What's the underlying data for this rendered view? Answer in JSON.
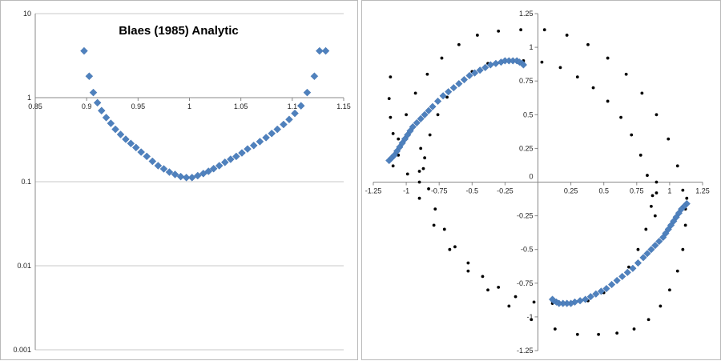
{
  "chart_data": [
    {
      "type": "scatter",
      "title": "Blaes (1985) Analytic",
      "xlabel": "",
      "ylabel": "",
      "yscale": "log",
      "xlim": [
        0.85,
        1.15
      ],
      "ylim": [
        0.001,
        10
      ],
      "grid": "horizontal gridlines at decades",
      "marker": "diamond",
      "marker_color": "#4f81bd",
      "x_ticks": [
        "0.85",
        "0.9",
        "0.95",
        "1",
        "1.05",
        "1.1",
        "1.15"
      ],
      "y_ticks": [
        "10",
        "1",
        "0.1",
        "0.01",
        "0.001"
      ],
      "series": [
        {
          "x": [
            0.8975,
            0.9025,
            0.9065,
            0.9105,
            0.9145,
            0.919,
            0.9235,
            0.928,
            0.933,
            0.938,
            0.943,
            0.948,
            0.953,
            0.9585,
            0.964,
            0.9695,
            0.975,
            0.9805,
            0.986,
            0.9915,
            0.997,
            1.0025,
            1.008,
            1.0135,
            1.0185,
            1.0235,
            1.029,
            1.0345,
            1.04,
            1.0455,
            1.051,
            1.0565,
            1.0625,
            1.0685,
            1.0745,
            1.08,
            1.0855,
            1.0915,
            1.097,
            1.1025,
            1.1085,
            1.1145,
            1.1215,
            1.1265,
            1.1325
          ],
          "y": [
            3.6,
            1.8,
            1.15,
            0.87,
            0.7,
            0.58,
            0.495,
            0.42,
            0.365,
            0.32,
            0.285,
            0.255,
            0.225,
            0.2,
            0.175,
            0.155,
            0.142,
            0.13,
            0.122,
            0.115,
            0.112,
            0.112,
            0.118,
            0.125,
            0.133,
            0.143,
            0.155,
            0.17,
            0.185,
            0.2,
            0.22,
            0.245,
            0.27,
            0.3,
            0.335,
            0.375,
            0.42,
            0.48,
            0.55,
            0.65,
            0.8,
            1.15,
            1.8,
            3.6,
            3.6
          ]
        }
      ]
    },
    {
      "type": "scatter",
      "title": "",
      "xlabel": "",
      "ylabel": "",
      "xlim": [
        -1.25,
        1.25
      ],
      "ylim": [
        -1.25,
        1.25
      ],
      "grid": "off",
      "x_ticks": [
        "-1.25",
        "-1",
        "-0.75",
        "-0.5",
        "-0.25",
        "0",
        "0.25",
        "0.5",
        "0.75",
        "1",
        "1.25"
      ],
      "y_ticks": [
        "1.25",
        "1",
        "0.75",
        "0.5",
        "0.25",
        "0",
        "-0.25",
        "-0.5",
        "-0.75",
        "-1",
        "-1.25"
      ],
      "series": [
        {
          "marker": "dot",
          "color": "#000000",
          "x": [
            -1.1,
            -1.06,
            -1.0,
            -0.93,
            -0.84,
            -0.73,
            -0.6,
            -0.46,
            -0.3,
            -0.13,
            0.05,
            0.22,
            0.38,
            0.53,
            0.67,
            0.79,
            0.9,
            0.99,
            1.06,
            1.1,
            1.12,
            1.13,
            1.12,
            1.1,
            1.06,
            1.0,
            0.93,
            0.84,
            0.73,
            0.6,
            0.46,
            0.3,
            0.13,
            -0.05,
            -0.22,
            -0.38,
            -0.53,
            -0.67,
            -0.79,
            -0.9,
            -0.99,
            -1.06,
            -1.1,
            -1.12,
            -1.13,
            -1.12,
            -0.9,
            -0.86,
            -0.82,
            -0.76,
            -0.69,
            -0.6,
            -0.5,
            -0.38,
            -0.25,
            -0.11,
            0.03,
            0.17,
            0.3,
            0.42,
            0.53,
            0.63,
            0.71,
            0.78,
            0.83,
            0.87,
            0.89,
            0.9,
            0.9,
            0.86,
            0.82,
            0.76,
            0.69,
            0.6,
            0.5,
            0.38,
            0.25,
            0.11,
            -0.03,
            -0.17,
            -0.3,
            -0.42,
            -0.53,
            -0.63,
            -0.71,
            -0.78,
            -0.83,
            -0.87,
            -0.89,
            -0.9
          ],
          "y": [
            0.12,
            0.32,
            0.5,
            0.66,
            0.8,
            0.92,
            1.02,
            1.09,
            1.12,
            1.13,
            1.13,
            1.09,
            1.02,
            0.92,
            0.8,
            0.66,
            0.5,
            0.32,
            0.12,
            -0.06,
            -0.2,
            -0.12,
            -0.32,
            -0.5,
            -0.66,
            -0.8,
            -0.92,
            -1.02,
            -1.09,
            -1.12,
            -1.13,
            -1.13,
            -1.09,
            -1.02,
            -0.92,
            -0.8,
            -0.66,
            -0.5,
            -0.32,
            -0.12,
            0.06,
            0.2,
            0.36,
            0.48,
            0.62,
            0.78,
            0.0,
            0.18,
            0.35,
            0.5,
            0.63,
            0.74,
            0.82,
            0.88,
            0.9,
            0.9,
            0.89,
            0.85,
            0.78,
            0.7,
            0.6,
            0.48,
            0.35,
            0.2,
            0.05,
            -0.1,
            -0.25,
            -0.08,
            0.0,
            -0.18,
            -0.35,
            -0.5,
            -0.63,
            -0.74,
            -0.82,
            -0.88,
            -0.9,
            -0.9,
            -0.89,
            -0.85,
            -0.78,
            -0.7,
            -0.6,
            -0.48,
            -0.35,
            -0.2,
            -0.05,
            0.1,
            0.25,
            0.08
          ]
        },
        {
          "marker": "diamond",
          "color": "#4f81bd",
          "x": [
            -1.13,
            -1.11,
            -1.09,
            -1.07,
            -1.05,
            -1.03,
            -1.01,
            -0.99,
            -0.97,
            -0.95,
            -0.92,
            -0.89,
            -0.86,
            -0.83,
            -0.8,
            -0.76,
            -0.72,
            -0.68,
            -0.64,
            -0.6,
            -0.56,
            -0.52,
            -0.48,
            -0.44,
            -0.4,
            -0.36,
            -0.32,
            -0.28,
            -0.25,
            -0.22,
            -0.19,
            -0.16,
            -0.14,
            -0.12,
            -0.11,
            1.13,
            1.11,
            1.09,
            1.07,
            1.05,
            1.03,
            1.01,
            0.99,
            0.97,
            0.95,
            0.92,
            0.89,
            0.86,
            0.83,
            0.8,
            0.76,
            0.72,
            0.68,
            0.64,
            0.6,
            0.56,
            0.52,
            0.48,
            0.44,
            0.4,
            0.36,
            0.32,
            0.28,
            0.25,
            0.22,
            0.19,
            0.16,
            0.14,
            0.12,
            0.11
          ],
          "y": [
            0.16,
            0.18,
            0.2,
            0.23,
            0.26,
            0.29,
            0.32,
            0.35,
            0.38,
            0.41,
            0.44,
            0.47,
            0.5,
            0.53,
            0.56,
            0.6,
            0.64,
            0.67,
            0.7,
            0.73,
            0.76,
            0.79,
            0.81,
            0.83,
            0.85,
            0.87,
            0.88,
            0.89,
            0.9,
            0.9,
            0.9,
            0.9,
            0.89,
            0.88,
            0.87,
            -0.16,
            -0.18,
            -0.2,
            -0.23,
            -0.26,
            -0.29,
            -0.32,
            -0.35,
            -0.38,
            -0.41,
            -0.44,
            -0.47,
            -0.5,
            -0.53,
            -0.56,
            -0.6,
            -0.64,
            -0.67,
            -0.7,
            -0.73,
            -0.76,
            -0.79,
            -0.81,
            -0.83,
            -0.85,
            -0.87,
            -0.88,
            -0.89,
            -0.9,
            -0.9,
            -0.9,
            -0.9,
            -0.89,
            -0.88,
            -0.87
          ]
        }
      ]
    }
  ]
}
